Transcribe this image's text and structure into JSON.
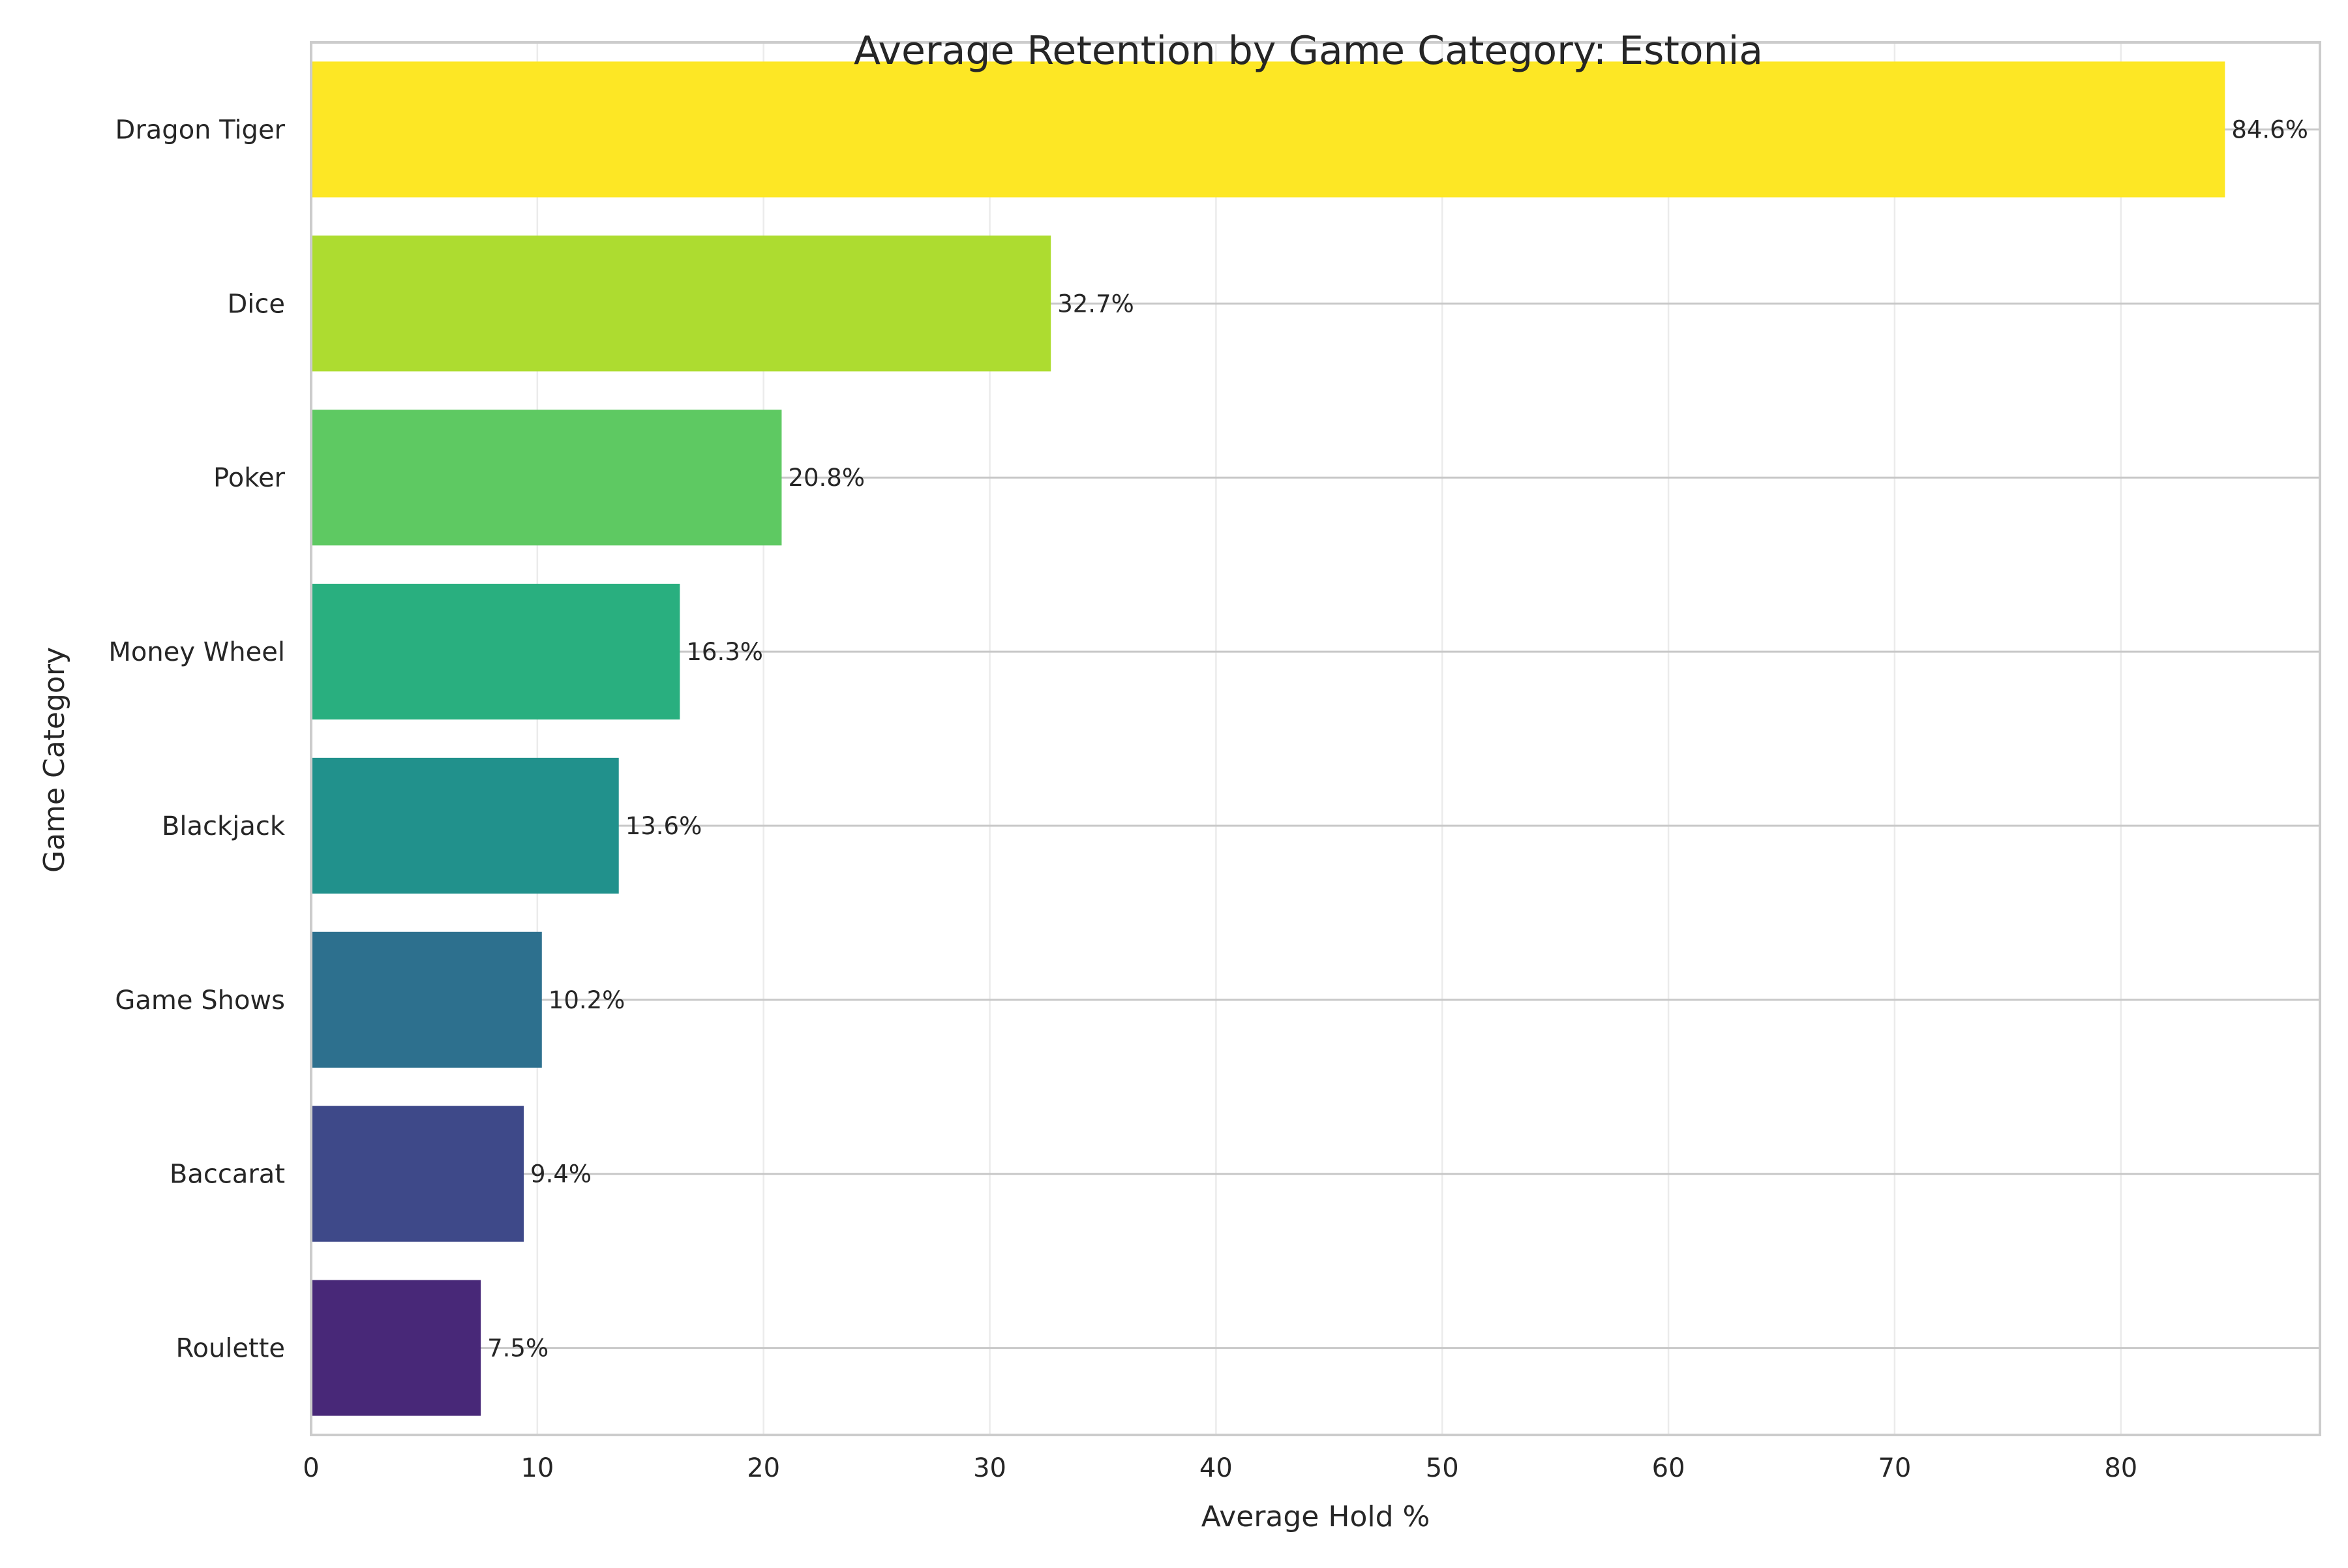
{
  "chart_data": {
    "type": "bar",
    "orientation": "horizontal",
    "title": "Average Retention by Game Category: Estonia",
    "xlabel": "Average Hold %",
    "ylabel": "Game Category",
    "xlim": [
      0,
      88.8
    ],
    "xticks": [
      0,
      10,
      20,
      30,
      40,
      50,
      60,
      70,
      80
    ],
    "grid": true,
    "legend": "none",
    "categories": [
      "Roulette",
      "Baccarat",
      "Game Shows",
      "Blackjack",
      "Money Wheel",
      "Poker",
      "Dice",
      "Dragon Tiger"
    ],
    "values": [
      7.5,
      9.4,
      10.2,
      13.6,
      16.3,
      20.8,
      32.7,
      84.6
    ],
    "value_labels": [
      "7.5%",
      "9.4%",
      "10.2%",
      "13.6%",
      "16.3%",
      "20.8%",
      "32.7%",
      "84.6%"
    ],
    "colors": [
      "#482878",
      "#3e4989",
      "#2d708e",
      "#21918c",
      "#29af7f",
      "#5ec962",
      "#addc30",
      "#fde725"
    ]
  }
}
